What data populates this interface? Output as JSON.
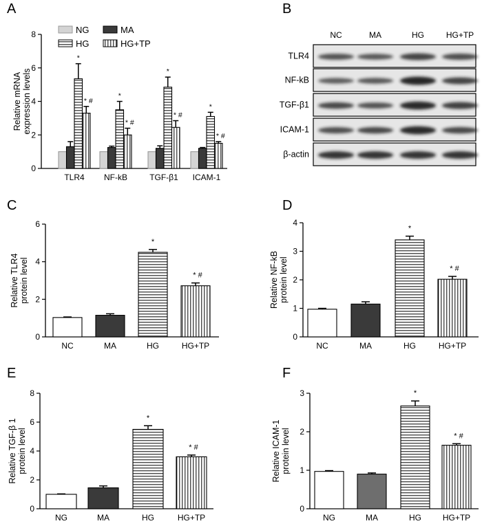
{
  "panel_letters": [
    "A",
    "B",
    "C",
    "D",
    "E",
    "F"
  ],
  "blot": {
    "lanes": [
      "NC",
      "MA",
      "HG",
      "HG+TP"
    ],
    "rows": [
      "TLR4",
      "NF-kB",
      "TGF-β1",
      "ICAM-1",
      "β-actin"
    ],
    "intensity": [
      [
        0.55,
        0.5,
        0.7,
        0.6
      ],
      [
        0.45,
        0.5,
        1.0,
        0.7
      ],
      [
        0.65,
        0.55,
        0.95,
        0.75
      ],
      [
        0.6,
        0.65,
        0.95,
        0.65
      ],
      [
        0.85,
        0.85,
        0.85,
        0.85
      ]
    ]
  },
  "chart_data": [
    {
      "id": "A",
      "type": "bar",
      "ylabel": [
        "Relative mRNA",
        "expression levels"
      ],
      "ylim": [
        0,
        8
      ],
      "yticks": [
        0,
        2,
        4,
        6,
        8
      ],
      "groups": [
        "TLR4",
        "NF-kB",
        "TGF-β1",
        "ICAM-1"
      ],
      "legend": [
        "NG",
        "MA",
        "HG",
        "HG+TP"
      ],
      "series": [
        {
          "name": "NG",
          "pattern": "light",
          "values": [
            1.0,
            1.0,
            1.0,
            1.0
          ],
          "errors": [
            0,
            0,
            0,
            0
          ],
          "marks": [
            "",
            "",
            "",
            ""
          ]
        },
        {
          "name": "MA",
          "pattern": "dark",
          "values": [
            1.3,
            1.25,
            1.2,
            1.2
          ],
          "errors": [
            0.3,
            0.08,
            0.15,
            0.05
          ],
          "marks": [
            "",
            "",
            "",
            ""
          ]
        },
        {
          "name": "HG",
          "pattern": "hstripe",
          "values": [
            5.35,
            3.5,
            4.85,
            3.1
          ],
          "errors": [
            0.9,
            0.5,
            0.6,
            0.25
          ],
          "marks": [
            "*",
            "*",
            "*",
            "*"
          ]
        },
        {
          "name": "HG+TP",
          "pattern": "vstripe",
          "values": [
            3.3,
            2.0,
            2.45,
            1.5
          ],
          "errors": [
            0.4,
            0.4,
            0.4,
            0.1
          ],
          "marks": [
            "* #",
            "* #",
            "* #",
            "* #"
          ]
        }
      ]
    },
    {
      "id": "C",
      "type": "bar",
      "ylabel": [
        "Relative TLR4",
        "protein level"
      ],
      "ylim": [
        0,
        6
      ],
      "yticks": [
        0,
        2,
        4,
        6
      ],
      "categories": [
        "NC",
        "MA",
        "HG",
        "HG+TP"
      ],
      "patterns": [
        "white",
        "dark",
        "hstripe",
        "vstripe"
      ],
      "values": [
        1.03,
        1.15,
        4.5,
        2.72
      ],
      "errors": [
        0.03,
        0.08,
        0.15,
        0.15
      ],
      "marks": [
        "",
        "",
        "*",
        "* #"
      ]
    },
    {
      "id": "D",
      "type": "bar",
      "ylabel": [
        "Relative NF-kB",
        "protein level"
      ],
      "ylim": [
        0,
        4
      ],
      "yticks": [
        0,
        1,
        2,
        3,
        4
      ],
      "categories": [
        "NC",
        "MA",
        "HG",
        "HG+TP"
      ],
      "patterns": [
        "white",
        "dark",
        "hstripe",
        "vstripe"
      ],
      "values": [
        0.97,
        1.15,
        3.4,
        2.02
      ],
      "errors": [
        0.03,
        0.08,
        0.13,
        0.1
      ],
      "marks": [
        "",
        "",
        "*",
        "* #"
      ]
    },
    {
      "id": "E",
      "type": "bar",
      "ylabel": [
        "Relative TGF-β 1",
        "protein level"
      ],
      "ylim": [
        0,
        8
      ],
      "yticks": [
        0,
        2,
        4,
        6,
        8
      ],
      "categories": [
        "NG",
        "MA",
        "HG",
        "HG+TP"
      ],
      "patterns": [
        "white",
        "dark",
        "hstripe",
        "vstripe"
      ],
      "values": [
        1.0,
        1.45,
        5.5,
        3.6
      ],
      "errors": [
        0.03,
        0.13,
        0.25,
        0.12
      ],
      "marks": [
        "",
        "",
        "*",
        "* #"
      ]
    },
    {
      "id": "F",
      "type": "bar",
      "ylabel": [
        "Relative ICAM-1",
        "protein level"
      ],
      "ylim": [
        0,
        3
      ],
      "yticks": [
        0,
        1,
        2,
        3
      ],
      "categories": [
        "NG",
        "MA",
        "HG",
        "HG+TP"
      ],
      "patterns": [
        "white",
        "gray",
        "hstripe",
        "vstripe"
      ],
      "values": [
        0.97,
        0.9,
        2.67,
        1.65
      ],
      "errors": [
        0.02,
        0.03,
        0.13,
        0.04
      ],
      "marks": [
        "",
        "",
        "*",
        "* #"
      ]
    }
  ]
}
